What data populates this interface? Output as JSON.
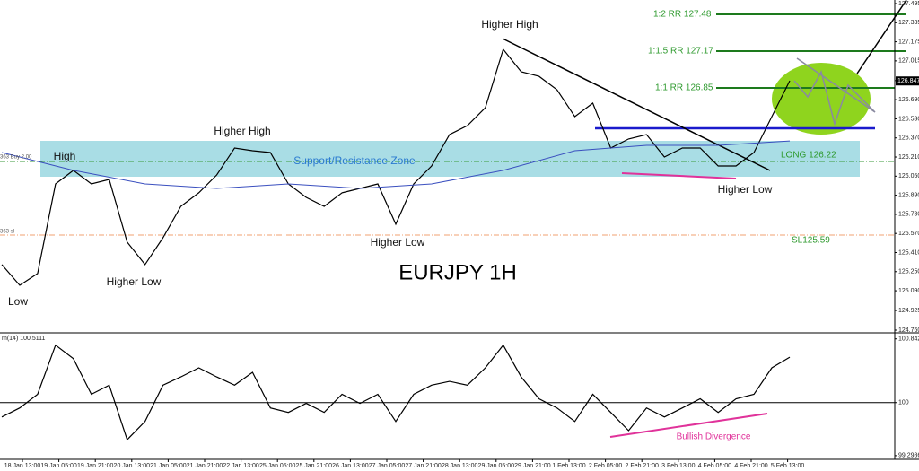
{
  "chart_data": [
    {
      "type": "line",
      "title": "EURJPY 1H",
      "series": [
        {
          "color": "#000000",
          "values": [
            125.309,
            125.136,
            125.234,
            125.985,
            126.098,
            125.985,
            126.022,
            125.497,
            125.309,
            125.534,
            125.797,
            125.91,
            126.06,
            126.285,
            126.263,
            126.248,
            125.985,
            125.872,
            125.797,
            125.91,
            125.947,
            125.985,
            125.647,
            125.985,
            126.135,
            126.398,
            126.473,
            126.623,
            127.112,
            126.924,
            126.886,
            126.774,
            126.548,
            126.661,
            126.285,
            126.361,
            126.398,
            126.21,
            126.285,
            126.285,
            126.135,
            126.135,
            126.248,
            126.548,
            126.849
          ]
        },
        {
          "color": "#3a4fbf",
          "values": [
            126.248,
            126.098,
            125.985,
            125.947,
            125.985,
            125.947,
            125.985,
            126.098,
            126.263,
            126.308,
            126.308,
            126.345
          ]
        }
      ],
      "ylim": [
        124.76,
        127.495
      ],
      "yticks": [
        127.495,
        127.335,
        127.175,
        127.015,
        {
          "value": 126.85,
          "label": "126.850"
        },
        {
          "value": 126.69,
          "label": "126.690"
        },
        {
          "value": 126.53,
          "label": "126.530"
        },
        {
          "value": 126.37,
          "label": "126.370"
        },
        {
          "value": 126.21,
          "label": "126.210"
        },
        {
          "value": 126.05,
          "label": "126.050"
        },
        {
          "value": 125.89,
          "label": "125.890"
        },
        {
          "value": 125.73,
          "label": "125.730"
        },
        {
          "value": 125.57,
          "label": "125.570"
        },
        {
          "value": 125.41,
          "label": "125.410"
        },
        {
          "value": 125.25,
          "label": "125.250"
        },
        {
          "value": 125.09,
          "label": "125.090"
        },
        124.925,
        {
          "value": 124.76,
          "label": "124.760"
        }
      ],
      "last_price": 126.847,
      "annotations": [
        "Higher High",
        "Higher High",
        "High",
        "Low",
        "Higher Low",
        "Higher Low",
        "Higher Low",
        "Support/Resistance Zone",
        "LONG 126.22",
        "SL125.59",
        "1:1 RR 126.85",
        "1:1.5 RR 127.17",
        "1:2 RR 127.48",
        "363 Buy 2.00",
        "363 sl"
      ]
    },
    {
      "type": "line",
      "title": "m(14) 100.5111",
      "values": [
        99.81,
        99.93,
        100.11,
        100.76,
        100.58,
        100.11,
        100.23,
        99.51,
        99.75,
        100.23,
        100.34,
        100.46,
        100.34,
        100.23,
        100.4,
        99.93,
        99.87,
        99.99,
        99.87,
        100.11,
        99.99,
        100.11,
        99.75,
        100.11,
        100.23,
        100.28,
        100.23,
        100.46,
        100.76,
        100.34,
        100.05,
        99.93,
        99.75,
        100.11,
        99.87,
        99.63,
        99.93,
        99.81,
        99.93,
        100.05,
        99.87,
        100.05,
        100.11,
        100.46,
        100.6
      ],
      "color": "#000000",
      "ylim": [
        99.25,
        100.91
      ],
      "yticks": [
        100.8421,
        100,
        99.2986
      ],
      "x_labels": [
        "18 Jan 13:00",
        "19 Jan 05:00",
        "19 Jan 21:00",
        "20 Jan 13:00",
        "21 Jan 05:00",
        "21 Jan 21:00",
        "22 Jan 13:00",
        "25 Jan 05:00",
        "25 Jan 21:00",
        "26 Jan 13:00",
        "27 Jan 05:00",
        "27 Jan 21:00",
        "28 Jan 13:00",
        "29 Jan 05:00",
        "29 Jan 21:00",
        "1 Feb 13:00",
        "2 Feb 05:00",
        "2 Feb 21:00",
        "3 Feb 13:00",
        "4 Feb 05:00",
        "4 Feb 21:00",
        "5 Feb 13:00"
      ],
      "annotations": [
        "Bullish Divergence"
      ]
    }
  ]
}
